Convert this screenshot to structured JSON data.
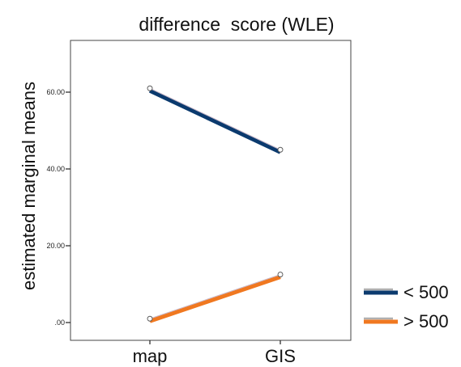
{
  "chart_data": {
    "type": "line",
    "title": "difference  score (WLE)",
    "xlabel": "",
    "ylabel": "estimated marginal means",
    "categories": [
      "map",
      "GIS"
    ],
    "y_ticks": [
      ".00",
      "20.00",
      "40.00",
      "60.00"
    ],
    "ylim": [
      -5,
      73
    ],
    "grid": false,
    "legend_position": "right",
    "series": [
      {
        "name": "< 500",
        "values": [
          61,
          45
        ],
        "color": "#0b3a6e"
      },
      {
        "name": "> 500",
        "values": [
          1,
          12.5
        ],
        "color": "#f07820"
      }
    ]
  }
}
